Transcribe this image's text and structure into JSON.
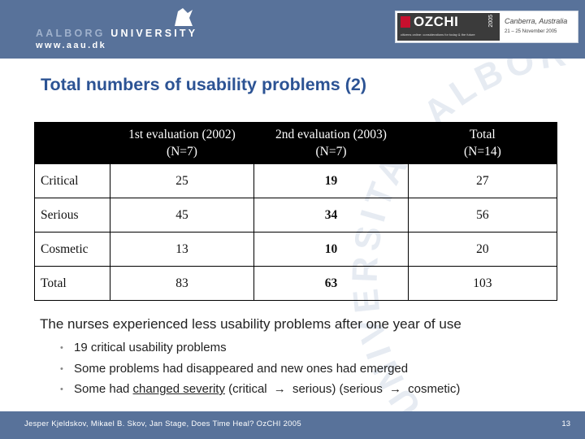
{
  "header": {
    "logo_line1_prefix": "AALBORG ",
    "logo_line1_suffix": "UNIVERSITY",
    "logo_line2": "www.aau.dk",
    "banner": {
      "brand": "OZCHI",
      "year": "2005",
      "tagline": "citizens online: considerations for today & the future",
      "place": "Canberra, Australia",
      "dates": "21 – 25 November 2005"
    }
  },
  "watermark": "UNIVERSITAS ALBORGENSIS",
  "slide_title": "Total numbers of usability problems (2)",
  "table": {
    "headers": [
      {
        "line1": "",
        "line2": ""
      },
      {
        "line1": "1st evaluation (2002)",
        "line2": "(N=7)"
      },
      {
        "line1": "2nd evaluation (2003)",
        "line2": "(N=7)"
      },
      {
        "line1": "Total",
        "line2": "(N=14)"
      }
    ],
    "rows": [
      {
        "label": "Critical",
        "first": "25",
        "second": "19",
        "total": "27"
      },
      {
        "label": "Serious",
        "first": "45",
        "second": "34",
        "total": "56"
      },
      {
        "label": "Cosmetic",
        "first": "13",
        "second": "10",
        "total": "20"
      },
      {
        "label": "Total",
        "first": "83",
        "second": "63",
        "total": "103"
      }
    ]
  },
  "summary": "The nurses experienced less usability problems after one year of use",
  "bullets": {
    "b1": "19 critical usability problems",
    "b2": "Some problems had disappeared and new ones had emerged",
    "b3_prefix": "Some had ",
    "b3_underlined": "changed severity",
    "b3_part1": " (critical ",
    "b3_arrow1": "→",
    "b3_part2": " serious) (serious ",
    "b3_arrow2": "→",
    "b3_part3": " cosmetic)"
  },
  "footer": {
    "text": "Jesper Kjeldskov, Mikael B. Skov, Jan Stage, Does Time Heal? OzCHI 2005",
    "page": "13"
  },
  "colors": {
    "header_bg": "#58729a",
    "title": "#2c5394",
    "watermark": "#e8edf4"
  }
}
